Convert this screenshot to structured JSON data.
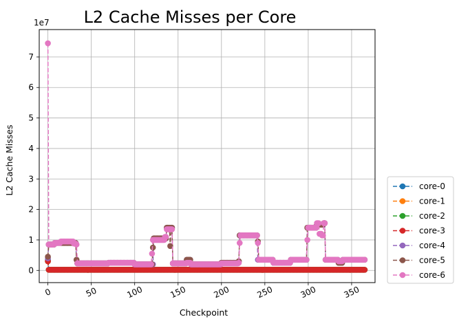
{
  "chart_data": {
    "type": "line",
    "title": "L2 Cache Misses per Core",
    "xlabel": "Checkpoint",
    "ylabel": "L2 Cache Misses",
    "y_scale_label": "1e7",
    "xlim": [
      -10,
      377
    ],
    "ylim": [
      -4,
      79
    ],
    "x_ticks": [
      0,
      50,
      100,
      150,
      200,
      250,
      300,
      350
    ],
    "x_tick_labels": [
      "0",
      "50",
      "100",
      "150",
      "200",
      "250",
      "300",
      "350"
    ],
    "y_ticks": [
      0,
      10,
      20,
      30,
      40,
      50,
      60,
      70
    ],
    "y_tick_labels": [
      "0",
      "1",
      "2",
      "3",
      "4",
      "5",
      "6",
      "7"
    ],
    "y_units": "1e6 (tick labels in units of 1e7)",
    "x_count": 366,
    "grid": true,
    "legend_position": "outside-right-bottom",
    "line_style": "dashed with circle markers",
    "series": [
      {
        "name": "core-0",
        "color": "#1f77b4",
        "points": [
          [
            0,
            3.5
          ],
          [
            1,
            0.2
          ],
          [
            365,
            0.2
          ]
        ]
      },
      {
        "name": "core-1",
        "color": "#ff7f0e",
        "points": [
          [
            0,
            3.0
          ],
          [
            1,
            0.2
          ],
          [
            365,
            0.2
          ]
        ]
      },
      {
        "name": "core-2",
        "color": "#2ca02c",
        "points": [
          [
            0,
            3.0
          ],
          [
            1,
            0.2
          ],
          [
            365,
            0.2
          ]
        ]
      },
      {
        "name": "core-3",
        "color": "#d62728",
        "points": [
          [
            0,
            3.0
          ],
          [
            1,
            0.2
          ],
          [
            365,
            0.2
          ]
        ]
      },
      {
        "name": "core-4",
        "color": "#9467bd",
        "points": [
          [
            0,
            4.0
          ],
          [
            1,
            8.5
          ],
          [
            8,
            9.0
          ],
          [
            30,
            9.0
          ],
          [
            33,
            3.5
          ],
          [
            34,
            2.3
          ],
          [
            70,
            2.5
          ],
          [
            100,
            2.0
          ],
          [
            120,
            2.0
          ],
          [
            122,
            10.5
          ],
          [
            135,
            10.5
          ],
          [
            137,
            14.0
          ],
          [
            142,
            14.0
          ],
          [
            144,
            2.3
          ],
          [
            160,
            3.5
          ],
          [
            165,
            2.0
          ],
          [
            200,
            2.5
          ],
          [
            220,
            3.0
          ],
          [
            221,
            11.5
          ],
          [
            240,
            11.5
          ],
          [
            242,
            3.5
          ],
          [
            255,
            3.5
          ],
          [
            260,
            2.5
          ],
          [
            275,
            2.5
          ],
          [
            280,
            3.5
          ],
          [
            298,
            3.5
          ],
          [
            299,
            14.0
          ],
          [
            310,
            15.0
          ],
          [
            318,
            15.5
          ],
          [
            320,
            3.5
          ],
          [
            330,
            3.5
          ],
          [
            335,
            2.5
          ],
          [
            340,
            3.5
          ],
          [
            365,
            3.5
          ]
        ]
      },
      {
        "name": "core-5",
        "color": "#8c564b",
        "points": [
          [
            0,
            4.5
          ],
          [
            1,
            8.5
          ],
          [
            8,
            9.0
          ],
          [
            30,
            9.0
          ],
          [
            33,
            3.5
          ],
          [
            34,
            2.3
          ],
          [
            70,
            2.5
          ],
          [
            100,
            2.0
          ],
          [
            120,
            2.0
          ],
          [
            121,
            7.5
          ],
          [
            122,
            10.5
          ],
          [
            135,
            10.5
          ],
          [
            137,
            14.0
          ],
          [
            141,
            8.0
          ],
          [
            142,
            14.0
          ],
          [
            144,
            2.3
          ],
          [
            160,
            3.5
          ],
          [
            165,
            2.0
          ],
          [
            200,
            2.5
          ],
          [
            220,
            3.0
          ],
          [
            221,
            11.5
          ],
          [
            240,
            11.5
          ],
          [
            242,
            9.5
          ],
          [
            243,
            3.5
          ],
          [
            255,
            3.5
          ],
          [
            260,
            2.5
          ],
          [
            275,
            2.5
          ],
          [
            280,
            3.5
          ],
          [
            298,
            3.5
          ],
          [
            299,
            14.0
          ],
          [
            310,
            15.0
          ],
          [
            318,
            15.5
          ],
          [
            320,
            3.5
          ],
          [
            330,
            3.5
          ],
          [
            335,
            2.5
          ],
          [
            340,
            3.5
          ],
          [
            365,
            3.5
          ]
        ]
      },
      {
        "name": "core-6",
        "color": "#e377c2",
        "points": [
          [
            0,
            74.5
          ],
          [
            1,
            8.5
          ],
          [
            8,
            9.0
          ],
          [
            15,
            9.5
          ],
          [
            30,
            8.8
          ],
          [
            33,
            8.5
          ],
          [
            34,
            2.3
          ],
          [
            70,
            2.5
          ],
          [
            100,
            2.0
          ],
          [
            119,
            2.0
          ],
          [
            120,
            5.5
          ],
          [
            121,
            10.0
          ],
          [
            135,
            11.0
          ],
          [
            137,
            13.5
          ],
          [
            142,
            13.5
          ],
          [
            144,
            2.3
          ],
          [
            160,
            2.5
          ],
          [
            165,
            2.0
          ],
          [
            200,
            2.3
          ],
          [
            220,
            2.5
          ],
          [
            221,
            9.0
          ],
          [
            222,
            11.5
          ],
          [
            240,
            11.5
          ],
          [
            242,
            9.0
          ],
          [
            243,
            3.5
          ],
          [
            255,
            3.5
          ],
          [
            260,
            2.5
          ],
          [
            275,
            2.5
          ],
          [
            280,
            3.5
          ],
          [
            298,
            3.5
          ],
          [
            299,
            10.0
          ],
          [
            300,
            14.0
          ],
          [
            310,
            15.5
          ],
          [
            313,
            12.0
          ],
          [
            316,
            11.5
          ],
          [
            318,
            15.5
          ],
          [
            320,
            3.5
          ],
          [
            330,
            3.5
          ],
          [
            335,
            3.0
          ],
          [
            340,
            3.5
          ],
          [
            365,
            3.5
          ]
        ]
      }
    ]
  }
}
